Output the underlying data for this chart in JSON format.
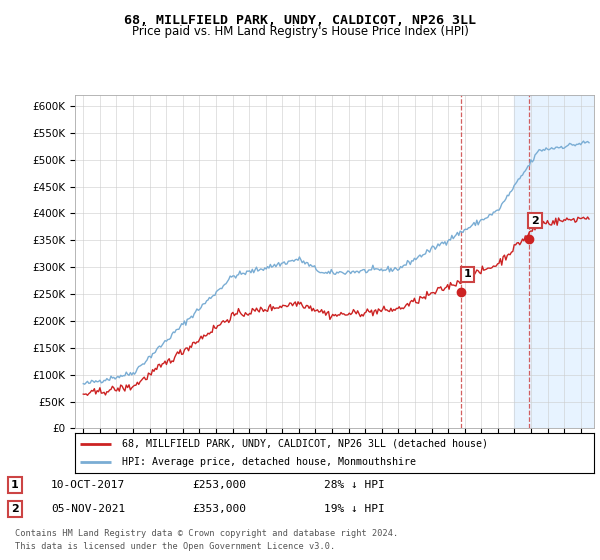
{
  "title": "68, MILLFIELD PARK, UNDY, CALDICOT, NP26 3LL",
  "subtitle": "Price paid vs. HM Land Registry's House Price Index (HPI)",
  "ylim": [
    0,
    620000
  ],
  "yticks": [
    0,
    50000,
    100000,
    150000,
    200000,
    250000,
    300000,
    350000,
    400000,
    450000,
    500000,
    550000,
    600000
  ],
  "ytick_labels": [
    "£0",
    "£50K",
    "£100K",
    "£150K",
    "£200K",
    "£250K",
    "£300K",
    "£350K",
    "£400K",
    "£450K",
    "£500K",
    "£550K",
    "£600K"
  ],
  "hpi_color": "#7aadd4",
  "price_color": "#cc2222",
  "annotation1_date": "10-OCT-2017",
  "annotation1_price": "£253,000",
  "annotation1_pct": "28% ↓ HPI",
  "annotation1_label": "1",
  "annotation1_year": 2017.78,
  "annotation1_value": 253000,
  "annotation2_date": "05-NOV-2021",
  "annotation2_price": "£353,000",
  "annotation2_pct": "19% ↓ HPI",
  "annotation2_label": "2",
  "annotation2_year": 2021.85,
  "annotation2_value": 353000,
  "legend_line1": "68, MILLFIELD PARK, UNDY, CALDICOT, NP26 3LL (detached house)",
  "legend_line2": "HPI: Average price, detached house, Monmouthshire",
  "footnote1": "Contains HM Land Registry data © Crown copyright and database right 2024.",
  "footnote2": "This data is licensed under the Open Government Licence v3.0.",
  "vline_color": "#cc4444",
  "highlight_color": "#ddeeff",
  "bg_color": "#f0f4ff"
}
